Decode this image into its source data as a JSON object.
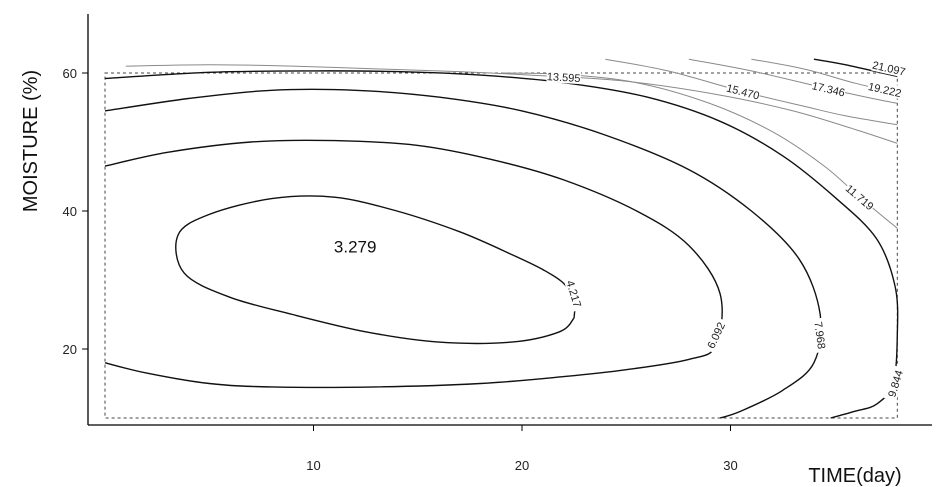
{
  "chart_data": {
    "type": "contour",
    "title": "",
    "xlabel": "TIME(day)",
    "ylabel": "MOISTURE (%)",
    "xlim": [
      0,
      39
    ],
    "ylim": [
      8,
      68
    ],
    "x_ticks": [
      10,
      20,
      30
    ],
    "y_ticks": [
      20,
      40,
      60
    ],
    "data_region": {
      "x": [
        0,
        38
      ],
      "y": [
        10,
        60
      ]
    },
    "minimum_label": {
      "text": "3.279",
      "x": 12,
      "y": 34
    },
    "levels": [
      {
        "label": "4.217",
        "label_at": [
          22.5,
          28
        ],
        "weight": "dark",
        "points": [
          [
            22.5,
            24.5
          ],
          [
            22.5,
            27
          ],
          [
            22,
            29.5
          ],
          [
            21,
            31.5
          ],
          [
            19.5,
            33.7
          ],
          [
            17,
            37
          ],
          [
            14,
            40
          ],
          [
            11,
            42
          ],
          [
            8,
            41.8
          ],
          [
            5,
            39.5
          ],
          [
            3.5,
            36.5
          ],
          [
            3.8,
            31
          ],
          [
            6,
            27.5
          ],
          [
            9,
            25
          ],
          [
            12.5,
            22.5
          ],
          [
            16,
            21
          ],
          [
            19.5,
            21
          ],
          [
            21.8,
            22.5
          ],
          [
            22.5,
            24.5
          ]
        ]
      },
      {
        "label": "6.092",
        "label_at": [
          29.3,
          22
        ],
        "weight": "dark",
        "points": [
          [
            0,
            46.5
          ],
          [
            3,
            48.5
          ],
          [
            7,
            50
          ],
          [
            11,
            50.2
          ],
          [
            15,
            49.5
          ],
          [
            18.5,
            47.5
          ],
          [
            22,
            44.5
          ],
          [
            25.5,
            40
          ],
          [
            28,
            35
          ],
          [
            29.5,
            28
          ],
          [
            29.3,
            20.5
          ],
          [
            28,
            18.5
          ],
          [
            25,
            17
          ],
          [
            22,
            16
          ],
          [
            18,
            15
          ],
          [
            13,
            14.5
          ],
          [
            8,
            14.5
          ],
          [
            5,
            15
          ],
          [
            2,
            16.5
          ],
          [
            0,
            18
          ]
        ]
      },
      {
        "label": "7.968",
        "label_at": [
          34.3,
          22
        ],
        "weight": "dark",
        "points": [
          [
            0,
            54.5
          ],
          [
            4,
            56.3
          ],
          [
            8,
            57.5
          ],
          [
            12,
            57.5
          ],
          [
            16,
            56.5
          ],
          [
            20,
            54.5
          ],
          [
            24,
            51
          ],
          [
            28,
            46
          ],
          [
            31,
            40
          ],
          [
            33.3,
            33
          ],
          [
            34.3,
            25
          ],
          [
            34,
            18
          ],
          [
            32.5,
            14
          ],
          [
            30.5,
            11
          ],
          [
            29.5,
            10
          ]
        ]
      },
      {
        "label": "9.844",
        "label_at": [
          37.9,
          15
        ],
        "weight": "dark",
        "points": [
          [
            0,
            59.2
          ],
          [
            5,
            60.1
          ],
          [
            10,
            60.3
          ],
          [
            14,
            60.2
          ],
          [
            18,
            59.7
          ],
          [
            22,
            58.6
          ],
          [
            26,
            56.5
          ],
          [
            29.5,
            53
          ],
          [
            32.5,
            48
          ],
          [
            35,
            42
          ],
          [
            37,
            36
          ],
          [
            37.9,
            29
          ],
          [
            38,
            22
          ],
          [
            37.8,
            15
          ],
          [
            37,
            12
          ],
          [
            36,
            11
          ],
          [
            34.8,
            10
          ]
        ]
      },
      {
        "label": "11.719",
        "label_at": [
          36.2,
          42
        ],
        "weight": "light",
        "points": [
          [
            19,
            60
          ],
          [
            22,
            59.8
          ],
          [
            25.5,
            58.6
          ],
          [
            29,
            55.6
          ],
          [
            32,
            51.5
          ],
          [
            34.5,
            46.5
          ],
          [
            36.2,
            42
          ],
          [
            38,
            37.5
          ]
        ]
      },
      {
        "label": "13.595",
        "label_at": [
          22,
          59.4
        ],
        "weight": "light",
        "points": [
          [
            1,
            61
          ],
          [
            5,
            61.2
          ],
          [
            9,
            61
          ],
          [
            13,
            60.6
          ],
          [
            17,
            60.2
          ],
          [
            21,
            59.6
          ],
          [
            25,
            58.8
          ],
          [
            29.5,
            56.8
          ],
          [
            33,
            54.5
          ],
          [
            36,
            51.8
          ],
          [
            38,
            49.8
          ]
        ]
      },
      {
        "label": "15.470",
        "label_at": [
          30.6,
          57.3
        ],
        "weight": "light",
        "points": [
          [
            24,
            62
          ],
          [
            27,
            60.3
          ],
          [
            30.6,
            57.3
          ],
          [
            33.5,
            55.2
          ],
          [
            35.5,
            53.8
          ],
          [
            38,
            52.5
          ]
        ]
      },
      {
        "label": "17.346",
        "label_at": [
          34.7,
          57.7
        ],
        "weight": "light",
        "points": [
          [
            28,
            62
          ],
          [
            31,
            60.3
          ],
          [
            34.7,
            57.7
          ],
          [
            36.5,
            56.5
          ],
          [
            38,
            55.6
          ]
        ]
      },
      {
        "label": "19.222",
        "label_at": [
          37.4,
          57.6
        ],
        "weight": "light",
        "points": [
          [
            31,
            62
          ],
          [
            33.5,
            60.6
          ],
          [
            36,
            58.5
          ],
          [
            38,
            57.1
          ]
        ]
      },
      {
        "label": "21.097",
        "label_at": [
          37.6,
          60.7
        ],
        "weight": "dark",
        "points": [
          [
            34,
            62
          ],
          [
            35.5,
            61.2
          ],
          [
            38,
            59.5
          ]
        ]
      }
    ]
  }
}
